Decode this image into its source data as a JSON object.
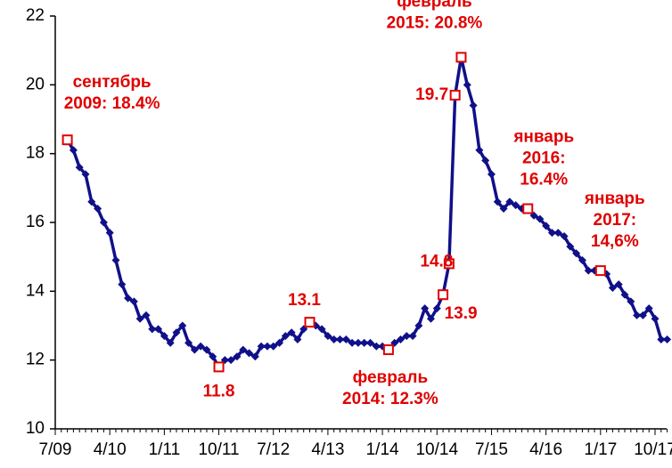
{
  "chart_data": {
    "type": "line",
    "categories": [
      "7/09",
      null,
      null,
      null,
      null,
      null,
      null,
      null,
      null,
      "4/10",
      null,
      null,
      null,
      null,
      null,
      null,
      null,
      null,
      "1/11",
      null,
      null,
      null,
      null,
      null,
      null,
      null,
      null,
      "10/11",
      null,
      null,
      null,
      null,
      null,
      null,
      null,
      null,
      "7/12",
      null,
      null,
      null,
      null,
      null,
      null,
      null,
      null,
      "4/13",
      null,
      null,
      null,
      null,
      null,
      null,
      null,
      null,
      "1/14",
      null,
      null,
      null,
      null,
      null,
      null,
      null,
      null,
      "10/14",
      null,
      null,
      null,
      null,
      null,
      null,
      null,
      null,
      "7/15",
      null,
      null,
      null,
      null,
      null,
      null,
      null,
      null,
      "4/16",
      null,
      null,
      null,
      null,
      null,
      null,
      null,
      null,
      "1/17",
      null,
      null,
      null,
      null,
      null,
      null,
      null,
      null,
      "10/17",
      null,
      null
    ],
    "series": [
      {
        "color": "#10108a",
        "values": [
          null,
          null,
          18.4,
          18.1,
          17.6,
          17.4,
          16.6,
          16.4,
          16.0,
          15.7,
          14.9,
          14.2,
          13.8,
          13.7,
          13.2,
          13.3,
          12.9,
          12.9,
          12.7,
          12.5,
          12.8,
          13.0,
          12.5,
          12.3,
          12.4,
          12.3,
          12.1,
          11.8,
          12.0,
          12.0,
          12.1,
          12.3,
          12.2,
          12.1,
          12.4,
          12.4,
          12.4,
          12.5,
          12.7,
          12.8,
          12.6,
          12.9,
          13.1,
          13.0,
          12.9,
          12.7,
          12.6,
          12.6,
          12.6,
          12.5,
          12.5,
          12.5,
          12.5,
          12.4,
          12.4,
          12.3,
          12.5,
          12.6,
          12.7,
          12.7,
          13.0,
          13.5,
          13.2,
          13.5,
          13.9,
          14.8,
          19.7,
          20.8,
          20.0,
          19.4,
          18.1,
          17.8,
          17.4,
          16.6,
          16.4,
          16.6,
          16.5,
          16.4,
          16.4,
          16.2,
          16.1,
          15.9,
          15.7,
          15.7,
          15.6,
          15.3,
          15.1,
          14.9,
          14.6,
          14.6,
          14.6,
          14.5,
          14.1,
          14.2,
          13.9,
          13.7,
          13.3,
          13.3,
          13.5,
          13.2,
          12.6,
          12.6
        ]
      }
    ],
    "highlight_color": "#e00000",
    "annotations": [
      {
        "at": 2,
        "lines": [
          "сентябрь",
          "2009: 18.4%"
        ]
      },
      {
        "at": 27,
        "lines": [
          "11.8"
        ]
      },
      {
        "at": 42,
        "lines": [
          "13.1"
        ]
      },
      {
        "at": 55,
        "lines": [
          "февраль",
          "2014: 12.3%"
        ]
      },
      {
        "at": 64,
        "lines": [
          "13.9"
        ]
      },
      {
        "at": 65,
        "lines": [
          "14.8"
        ]
      },
      {
        "at": 66,
        "lines": [
          "19.7"
        ]
      },
      {
        "at": 67,
        "lines": [
          "февраль",
          "2015: 20.8%"
        ]
      },
      {
        "at": 78,
        "lines": [
          "январь",
          "2016:",
          "16.4%"
        ]
      },
      {
        "at": 90,
        "lines": [
          "январь",
          "2017:",
          "14,6%"
        ]
      }
    ],
    "ylim": [
      10,
      22
    ],
    "yticks": [
      10,
      12,
      14,
      16,
      18,
      20,
      22
    ]
  }
}
